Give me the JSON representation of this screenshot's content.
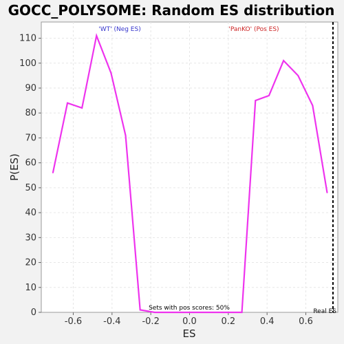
{
  "chart_data": {
    "type": "line",
    "title": "GOCC_POLYSOME: Random ES distribution",
    "xlabel": "ES",
    "ylabel": "P(ES)",
    "xlim": [
      -0.765,
      0.765
    ],
    "ylim": [
      0,
      116.5
    ],
    "x_ticks": [
      "-0.6",
      "-0.4",
      "-0.2",
      "0.0",
      "0.2",
      "0.4",
      "0.6"
    ],
    "x_tick_values": [
      -0.6,
      -0.4,
      -0.2,
      0.0,
      0.2,
      0.4,
      0.6
    ],
    "y_ticks": [
      "0",
      "10",
      "20",
      "30",
      "40",
      "50",
      "60",
      "70",
      "80",
      "90",
      "100",
      "110"
    ],
    "y_tick_values": [
      0,
      10,
      20,
      30,
      40,
      50,
      60,
      70,
      80,
      90,
      100,
      110
    ],
    "grid": true,
    "series": [
      {
        "color": "#ee33ee",
        "x": [
          -0.705,
          -0.63,
          -0.555,
          -0.48,
          -0.405,
          -0.33,
          -0.255,
          -0.18,
          -0.105,
          -0.03,
          0.045,
          0.12,
          0.195,
          0.27,
          0.34,
          0.41,
          0.485,
          0.56,
          0.635,
          0.71
        ],
        "y": [
          56,
          84,
          82,
          111,
          96,
          71,
          1,
          0,
          0,
          0,
          0,
          0,
          0,
          0,
          85,
          87,
          101,
          95,
          83,
          48
        ]
      }
    ],
    "real_es": {
      "x": 0.74,
      "label": "Real ES"
    },
    "annotations": {
      "neg_label": "'WT' (Neg ES)",
      "neg_color": "#3333cc",
      "pos_label": "'PanKO' (Pos ES)",
      "pos_color": "#cc2222",
      "center_text": "Sets with pos scores: 50%"
    }
  }
}
